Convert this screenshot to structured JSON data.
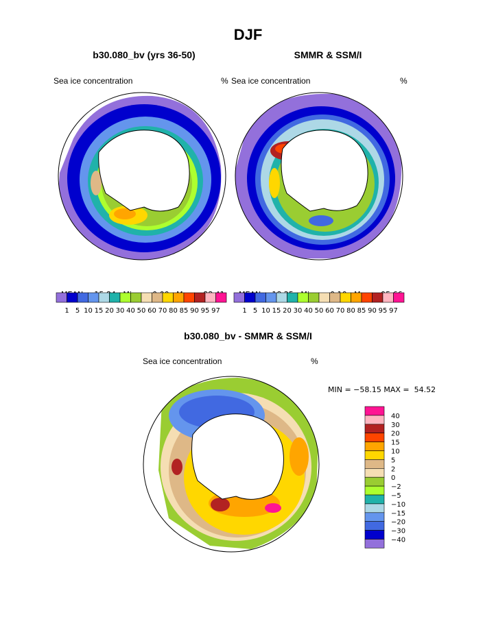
{
  "title": "DJF",
  "panels": [
    {
      "subtitle": "b30.080_bv (yrs 36-50)",
      "left_label": "Sea ice concentration",
      "right_label": "%",
      "mean_label": "MEAN=",
      "mean": "15.84",
      "min_label": "Min=",
      "min": "0.00",
      "max_label": "Max=",
      "max": "88.41"
    },
    {
      "subtitle": "SMMR & SSM/I",
      "left_label": "Sea ice concentration",
      "right_label": "%",
      "mean_label": "MEAN=",
      "mean": "18.25",
      "min_label": "Min=",
      "min": "0.10",
      "max_label": "Max=",
      "max": "95.66"
    }
  ],
  "concentration_levels": [
    "1",
    "5",
    "10",
    "15",
    "20",
    "30",
    "40",
    "50",
    "60",
    "70",
    "80",
    "85",
    "90",
    "95",
    "97"
  ],
  "concentration_colors": [
    "#9370db",
    "#0000cd",
    "#4169e1",
    "#6495ed",
    "#add8e6",
    "#20b2aa",
    "#adff2f",
    "#9acd32",
    "#f5deb3",
    "#deb887",
    "#ffd700",
    "#ffa500",
    "#ff4500",
    "#b22222",
    "#ffb6c1",
    "#ff1493"
  ],
  "difference": {
    "subtitle": "b30.080_bv - SMMR & SSM/I",
    "left_label": "Sea ice concentration",
    "right_label": "%",
    "minmax_text": "MIN = −58.15 MAX =  54.52",
    "levels": [
      "40",
      "30",
      "20",
      "15",
      "10",
      "5",
      "2",
      "0",
      "−2",
      "−5",
      "−10",
      "−15",
      "−20",
      "−30",
      "−40"
    ],
    "colors": [
      "#ff1493",
      "#ffb6c1",
      "#b22222",
      "#ff4500",
      "#ffa500",
      "#ffd700",
      "#deb887",
      "#f5deb3",
      "#9acd32",
      "#adff2f",
      "#20b2aa",
      "#add8e6",
      "#6495ed",
      "#4169e1",
      "#0000cd",
      "#9370db"
    ]
  }
}
